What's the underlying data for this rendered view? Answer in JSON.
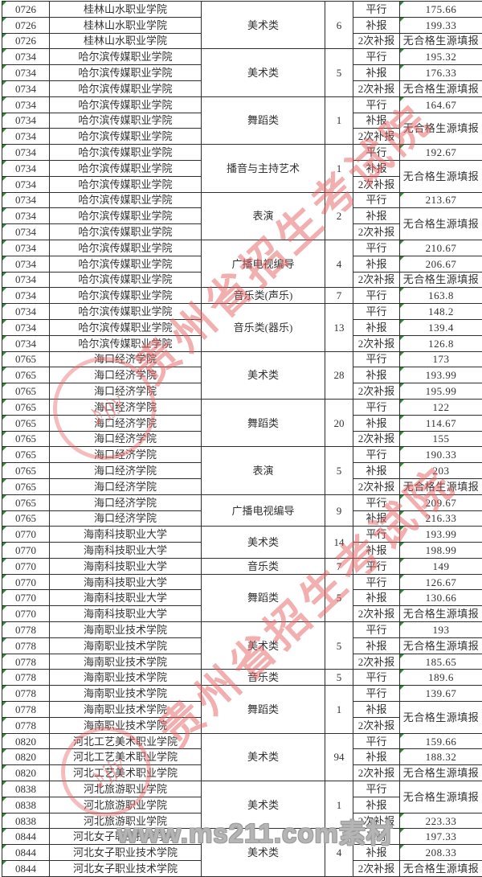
{
  "watermarks": {
    "diagonal_text": "贵州省招生考试院",
    "stamp_letters": "jjy",
    "stamp_note": "♪",
    "bottom_text": "www.ms211.com素材",
    "red_color": "#e46060",
    "gray_color": "#9c9c9c"
  },
  "table": {
    "flag_triangle_color": "#2e8b2e",
    "columns": [
      "code",
      "school",
      "category",
      "count",
      "type",
      "score"
    ],
    "no_source_text": "无合格生源填报",
    "groups": [
      {
        "code": "0726",
        "school": "桂林山水职业学院",
        "category": "美术类",
        "count": "6",
        "rows": [
          {
            "type": "平行",
            "score": "175.66"
          },
          {
            "type": "补报",
            "score": "199.33"
          },
          {
            "type": "2次补报",
            "score": "无合格生源填报"
          }
        ]
      },
      {
        "code": "0734",
        "school": "哈尔滨传媒职业学院",
        "category": "美术类",
        "count": "5",
        "rows": [
          {
            "type": "平行",
            "score": "195.32"
          },
          {
            "type": "补报",
            "score": "176.33"
          },
          {
            "type": "2次补报",
            "score": "无合格生源填报"
          }
        ]
      },
      {
        "code": "0734",
        "school": "哈尔滨传媒职业学院",
        "category": "舞蹈类",
        "count": "1",
        "rows": [
          {
            "type": "平行",
            "score": "164.67"
          },
          {
            "type": "补报",
            "score": "无合格生源填报",
            "span": 2
          },
          {
            "type": "2次补报"
          }
        ]
      },
      {
        "code": "0734",
        "school": "哈尔滨传媒职业学院",
        "category": "播音与主持艺术",
        "count": "1",
        "rows": [
          {
            "type": "平行",
            "score": "192.67"
          },
          {
            "type": "补报",
            "score": "无合格生源填报",
            "span": 2
          },
          {
            "type": "2次补报"
          }
        ]
      },
      {
        "code": "0734",
        "school": "哈尔滨传媒职业学院",
        "category": "表演",
        "count": "2",
        "rows": [
          {
            "type": "平行",
            "score": "213.67"
          },
          {
            "type": "补报",
            "score": "无合格生源填报",
            "span": 2
          },
          {
            "type": "2次补报"
          }
        ]
      },
      {
        "code": "0734",
        "school": "哈尔滨传媒职业学院",
        "category": "广播电视编导",
        "count": "4",
        "rows": [
          {
            "type": "平行",
            "score": "210.67"
          },
          {
            "type": "补报",
            "score": "206.67"
          },
          {
            "type": "2次补报",
            "score": "无合格生源填报"
          }
        ]
      },
      {
        "code": "0734",
        "school": "哈尔滨传媒职业学院",
        "category": "音乐类(声乐)",
        "count": "7",
        "rows": [
          {
            "type": "平行",
            "score": "163.8"
          }
        ]
      },
      {
        "code": "0734",
        "school": "哈尔滨传媒职业学院",
        "category": "音乐类(器乐)",
        "count": "13",
        "rows": [
          {
            "type": "平行",
            "score": "148.2"
          },
          {
            "type": "补报",
            "score": "139.4"
          },
          {
            "type": "2次补报",
            "score": "126.8"
          }
        ]
      },
      {
        "code": "0765",
        "school": "海口经济学院",
        "category": "美术类",
        "count": "28",
        "rows": [
          {
            "type": "平行",
            "score": "173"
          },
          {
            "type": "补报",
            "score": "193.99"
          },
          {
            "type": "2次补报",
            "score": "195.99"
          }
        ]
      },
      {
        "code": "0765",
        "school": "海口经济学院",
        "category": "舞蹈类",
        "count": "20",
        "rows": [
          {
            "type": "平行",
            "score": "122"
          },
          {
            "type": "补报",
            "score": "114.67"
          },
          {
            "type": "2次补报",
            "score": "155"
          }
        ]
      },
      {
        "code": "0765",
        "school": "海口经济学院",
        "category": "表演",
        "count": "5",
        "rows": [
          {
            "type": "平行",
            "score": "190.33"
          },
          {
            "type": "补报",
            "score": "203"
          },
          {
            "type": "2次补报",
            "score": "无合格生源填报"
          }
        ]
      },
      {
        "code": "0765",
        "school": "海口经济学院",
        "category": "广播电视编导",
        "count": "9",
        "rows": [
          {
            "type": "平行",
            "score": "209.67"
          },
          {
            "type": "补报",
            "score": "216.33"
          }
        ]
      },
      {
        "code": "0770",
        "school": "海南科技职业大学",
        "category": "美术类",
        "count": "14",
        "rows": [
          {
            "type": "平行",
            "score": "193.99"
          },
          {
            "type": "补报",
            "score": "198.99"
          }
        ]
      },
      {
        "code": "0770",
        "school": "海南科技职业大学",
        "category": "音乐类",
        "count": "7",
        "rows": [
          {
            "type": "平行",
            "score": "149"
          }
        ]
      },
      {
        "code": "0770",
        "school": "海南科技职业大学",
        "category": "舞蹈类",
        "count": "5",
        "rows": [
          {
            "type": "平行",
            "score": "126.67"
          },
          {
            "type": "补报",
            "score": "130.66"
          },
          {
            "type": "2次补报",
            "score": "无合格生源填报"
          }
        ]
      },
      {
        "code": "0778",
        "school": "海南职业技术学院",
        "category": "美术类",
        "count": "5",
        "rows": [
          {
            "type": "平行",
            "score": "193"
          },
          {
            "type": "补报",
            "score": "无合格生源填报"
          },
          {
            "type": "2次补报",
            "score": "185.65"
          }
        ]
      },
      {
        "code": "0778",
        "school": "海南职业技术学院",
        "category": "音乐类",
        "count": "5",
        "rows": [
          {
            "type": "平行",
            "score": "189.6"
          }
        ]
      },
      {
        "code": "0778",
        "school": "海南职业技术学院",
        "category": "舞蹈类",
        "count": "1",
        "rows": [
          {
            "type": "平行",
            "score": "139.67"
          },
          {
            "type": "补报",
            "score": "无合格生源填报",
            "span": 2
          },
          {
            "type": "2次补报"
          }
        ]
      },
      {
        "code": "0820",
        "school": "河北工艺美术职业学院",
        "category": "美术类",
        "count": "94",
        "rows": [
          {
            "type": "平行",
            "score": "159.66"
          },
          {
            "type": "补报",
            "score": "188.32"
          },
          {
            "type": "2次补报",
            "score": "无合格生源填报"
          }
        ]
      },
      {
        "code": "0838",
        "school": "河北旅游职业学院",
        "category": "美术类",
        "count": "1",
        "rows": [
          {
            "type": "平行",
            "score": "无合格生源填报",
            "span": 2
          },
          {
            "type": "补报"
          },
          {
            "type": "2次补报",
            "score": "223.33"
          }
        ]
      },
      {
        "code": "0844",
        "school": "河北女子职业技术学院",
        "category": "美术类",
        "count": "4",
        "rows": [
          {
            "type": "平行",
            "score": "197.33"
          },
          {
            "type": "补报",
            "score": "208.33"
          },
          {
            "type": "2次补报",
            "score": "无合格生源填报"
          }
        ]
      }
    ]
  }
}
